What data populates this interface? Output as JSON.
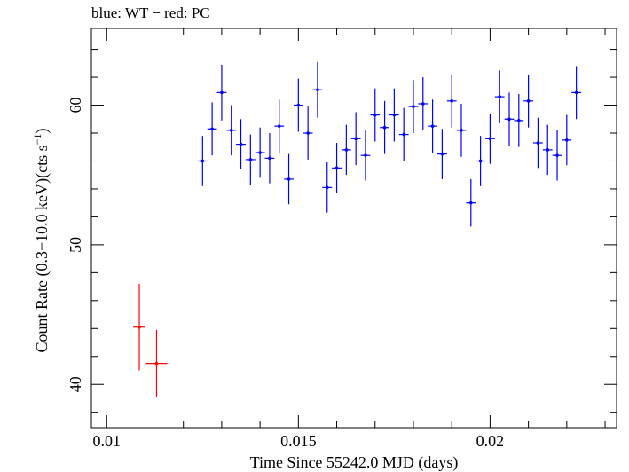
{
  "chart_data": {
    "type": "scatter",
    "title": "blue: WT − red: PC",
    "xlabel": "Time Since 55242.0 MJD (days)",
    "ylabel": "Count Rate (0.3−10.0 keV)(cts s",
    "ylabel_sup": "−1",
    "ylabel_close": ")",
    "xlim": [
      0.0096,
      0.0233
    ],
    "ylim": [
      36.9,
      65.5
    ],
    "x_ticks": [
      0.01,
      0.015,
      0.02
    ],
    "x_tick_labels": [
      "0.01",
      "0.015",
      "0.02"
    ],
    "y_ticks": [
      40,
      50,
      60
    ],
    "y_tick_labels": [
      "40",
      "50",
      "60"
    ],
    "grid": false,
    "series": [
      {
        "color": "#ff0000",
        "x": [
          0.01085,
          0.0113
        ],
        "xerr": [
          0.00016,
          0.00028
        ],
        "y": [
          44.1,
          41.5
        ],
        "yerr": [
          3.1,
          2.4
        ]
      },
      {
        "color": "#0000ff",
        "x": [
          0.0125,
          0.01275,
          0.013,
          0.01325,
          0.0135,
          0.01375,
          0.014,
          0.01425,
          0.0145,
          0.01475,
          0.015,
          0.01525,
          0.0155,
          0.01575,
          0.016,
          0.01625,
          0.0165,
          0.01675,
          0.017,
          0.01725,
          0.0175,
          0.01775,
          0.018,
          0.01825,
          0.0185,
          0.01875,
          0.019,
          0.01925,
          0.0195,
          0.01975,
          0.02,
          0.02025,
          0.0205,
          0.02075,
          0.021,
          0.02125,
          0.0215,
          0.02175,
          0.022,
          0.02225
        ],
        "xerr": 0.000125,
        "y": [
          56.0,
          58.3,
          60.9,
          58.2,
          57.2,
          56.1,
          56.6,
          56.2,
          58.5,
          54.7,
          60.0,
          58.0,
          61.1,
          54.1,
          55.5,
          56.8,
          57.6,
          56.4,
          59.3,
          58.4,
          59.3,
          57.9,
          59.9,
          60.1,
          58.5,
          56.5,
          60.3,
          58.2,
          53.0,
          56.0,
          57.6,
          60.6,
          59.0,
          58.9,
          60.3,
          57.3,
          56.8,
          56.4,
          57.5,
          60.9
        ],
        "yerr": [
          1.8,
          1.9,
          2.0,
          1.8,
          1.8,
          1.8,
          1.8,
          1.8,
          1.9,
          1.8,
          1.9,
          1.9,
          2.0,
          1.8,
          1.8,
          1.8,
          1.9,
          1.8,
          1.9,
          1.9,
          1.9,
          1.9,
          1.9,
          1.9,
          1.9,
          1.8,
          1.9,
          1.9,
          1.7,
          1.8,
          1.8,
          1.9,
          1.9,
          1.9,
          1.9,
          1.8,
          1.8,
          1.8,
          1.8,
          1.9
        ]
      }
    ]
  }
}
